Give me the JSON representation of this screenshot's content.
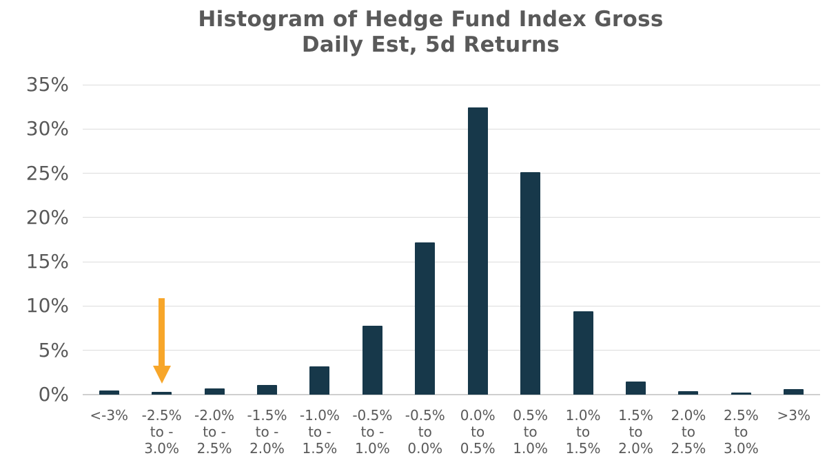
{
  "title": {
    "line1": "Histogram of Hedge Fund Index Gross",
    "line2": "Daily Est, 5d Returns"
  },
  "colors": {
    "bar": "#17384a",
    "arrow": "#f7a62a",
    "title_text": "#595959",
    "axis_text": "#595959",
    "gridline": "#dcdcdc",
    "axis_line": "#cfcfcf",
    "background": "#ffffff"
  },
  "chart_data": {
    "type": "bar",
    "title": "Histogram of Hedge Fund Index Gross Daily Est, 5d Returns",
    "xlabel": "",
    "ylabel": "",
    "ylim": [
      0,
      35
    ],
    "grid": true,
    "legend": false,
    "y_tick_values": [
      0,
      5,
      10,
      15,
      20,
      25,
      30,
      35
    ],
    "y_tick_labels": [
      "0%",
      "5%",
      "10%",
      "15%",
      "20%",
      "25%",
      "30%",
      "35%"
    ],
    "categories": [
      "<-3%",
      "-2.5% to -3.0%",
      "-2.0% to -2.5%",
      "-1.5% to -2.0%",
      "-1.0% to -1.5%",
      "-0.5% to -1.0%",
      "-0.5% to 0.0%",
      "0.0% to 0.5%",
      "0.5% to 1.0%",
      "1.0% to 1.5%",
      "1.5% to 2.0%",
      "2.0% to 2.5%",
      "2.5% to 3.0%",
      ">3%"
    ],
    "category_label_lines": [
      [
        "<-3%"
      ],
      [
        "-2.5%",
        "to -",
        "3.0%"
      ],
      [
        "-2.0%",
        "to -",
        "2.5%"
      ],
      [
        "-1.5%",
        "to -",
        "2.0%"
      ],
      [
        "-1.0%",
        "to -",
        "1.5%"
      ],
      [
        "-0.5%",
        "to -",
        "1.0%"
      ],
      [
        "-0.5%",
        "to",
        "0.0%"
      ],
      [
        "0.0%",
        "to",
        "0.5%"
      ],
      [
        "0.5%",
        "to",
        "1.0%"
      ],
      [
        "1.0%",
        "to",
        "1.5%"
      ],
      [
        "1.5%",
        "to",
        "2.0%"
      ],
      [
        "2.0%",
        "to",
        "2.5%"
      ],
      [
        "2.5%",
        "to",
        "3.0%"
      ],
      [
        ">3%"
      ]
    ],
    "values": [
      0.5,
      0.3,
      0.7,
      1.1,
      3.2,
      7.8,
      17.2,
      32.4,
      25.1,
      9.4,
      1.5,
      0.4,
      0.2,
      0.6
    ],
    "unit": "%",
    "annotation": {
      "shape": "down-arrow",
      "target_category": "-2.5% to -3.0%",
      "target_category_index": 1,
      "color": "#f7a62a"
    }
  }
}
